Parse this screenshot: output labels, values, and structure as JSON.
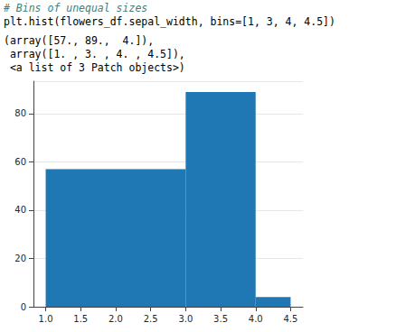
{
  "code": [
    "# Bins of unequal sizes",
    "plt.hist(flowers_df.sepal_width, bins=[1, 3, 4, 4.5])"
  ],
  "output": [
    "(array([57., 89.,  4.]),",
    " array([1. , 3. , 4. , 4.5]),",
    " <a list of 3 Patch objects>)"
  ],
  "chart_data": {
    "type": "histogram",
    "bins": [
      1,
      3,
      4,
      4.5
    ],
    "values": [
      57,
      89,
      4
    ],
    "color": "#1f77b4",
    "xlim": [
      0.825,
      4.675
    ],
    "xticks": [
      {
        "value": 1,
        "label": "1.0"
      },
      {
        "value": 1.5,
        "label": "1.5"
      },
      {
        "value": 2,
        "label": "2.0"
      },
      {
        "value": 2.5,
        "label": "2.5"
      },
      {
        "value": 3,
        "label": "3.0"
      },
      {
        "value": 3.5,
        "label": "3.5"
      },
      {
        "value": 4,
        "label": "4.0"
      },
      {
        "value": 4.5,
        "label": "4.5"
      }
    ],
    "ylim": [
      0,
      93.45
    ],
    "yticks": [
      0,
      20,
      40,
      60,
      80
    ],
    "grid": true
  }
}
